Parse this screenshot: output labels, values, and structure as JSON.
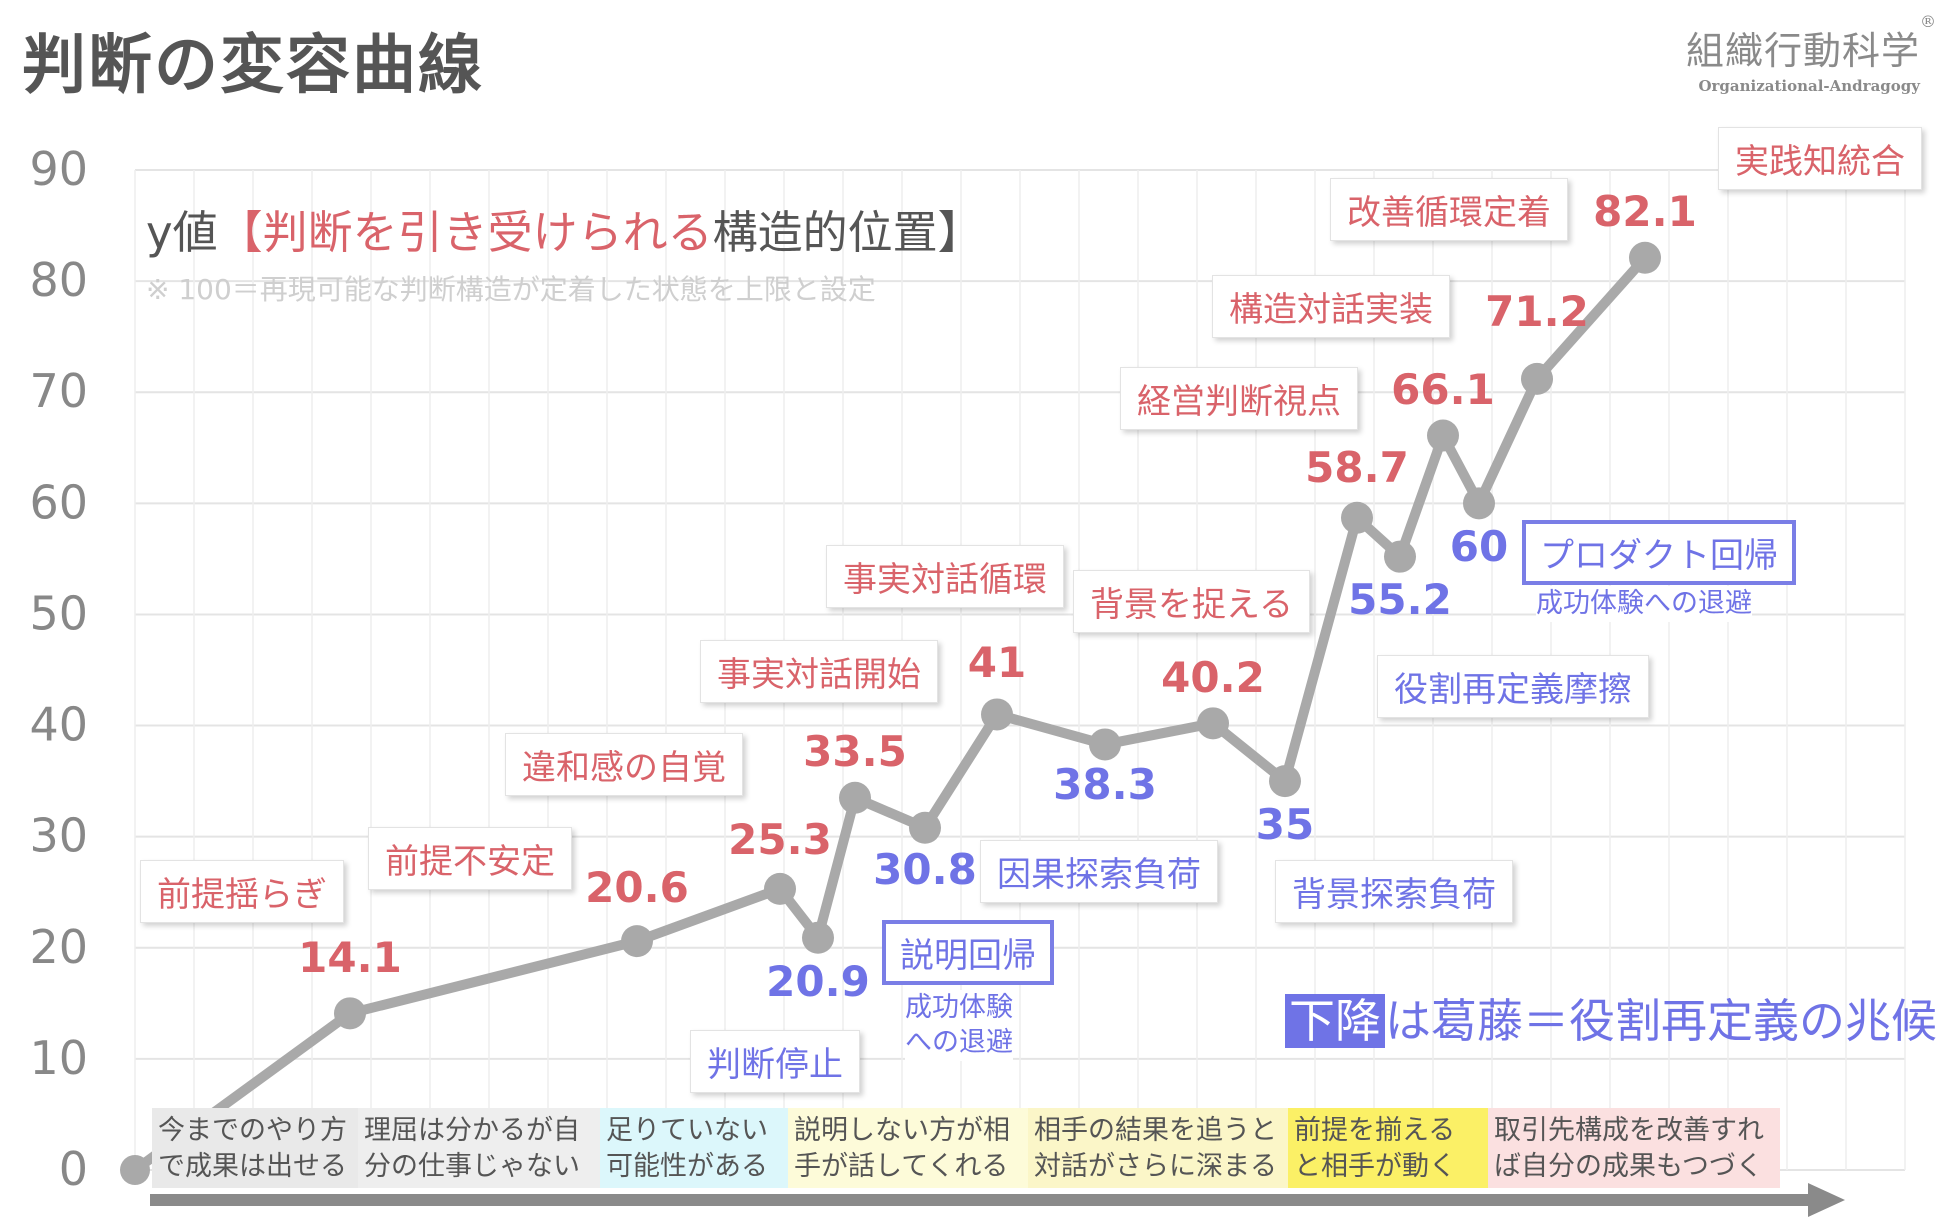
{
  "title": "判断の変容曲線",
  "brand": {
    "name": "組織行動科学",
    "sub": "Organizational-Andragogy",
    "reg": "®"
  },
  "header": {
    "prefix": "y値",
    "open": "【",
    "red": "判断を引き受けられる",
    "suffix": "構造的位置】",
    "note": "※ 100＝再現可能な判断構造が定着した状態を上限と設定"
  },
  "legend": {
    "highlight": "下降",
    "rest": "は葛藤＝役割再定義の兆候"
  },
  "colors": {
    "line": "#a9a9a9",
    "up": "#d9636a",
    "down": "#6f73e6",
    "grid": "#e4e4e4",
    "axis_text": "#888888"
  },
  "chart_data": {
    "type": "line",
    "ylim": [
      0,
      90
    ],
    "yticks": [
      "0",
      "10",
      "20",
      "30",
      "40",
      "50",
      "60",
      "70",
      "80",
      "90"
    ],
    "values": [
      0,
      14.1,
      20.6,
      25.3,
      20.9,
      33.5,
      30.8,
      41,
      38.3,
      40.2,
      35,
      58.7,
      55.2,
      66.1,
      60,
      71.2,
      82.1
    ],
    "value_labels": [
      "",
      "14.1",
      "20.6",
      "25.3",
      "20.9",
      "33.5",
      "30.8",
      "41",
      "38.3",
      "40.2",
      "35",
      "58.7",
      "55.2",
      "66.1",
      "60",
      "71.2",
      "82.1"
    ],
    "labels": [
      "",
      "前提揺らぎ",
      "前提不安定",
      "違和感の自覚",
      "判断停止",
      "事実対話開始",
      "説明回帰",
      "事実対話循環",
      "因果探索負荷",
      "背景を捉える",
      "背景探索負荷",
      "経営判断視点",
      "役割再定義摩擦",
      "構造対話実装",
      "プロダクト回帰",
      "改善循環定着",
      "実践知統合"
    ],
    "notes": {
      "sub_6_line1": "成功体験",
      "sub_6_line2": "への退避",
      "sub_14": "成功体験への退避"
    },
    "stages": [
      {
        "line1": "今までのやり方",
        "line2": "で成果は出せる",
        "color": "#e9e9e9"
      },
      {
        "line1": "理屈は分かるが自",
        "line2": "分の仕事じゃない",
        "color": "#eeeeee"
      },
      {
        "line1": "足りていない",
        "line2": "可能性がある",
        "color": "#dcf7fb"
      },
      {
        "line1": "説明しない方が相",
        "line2": "手が話してくれる",
        "color": "#fdfbd9"
      },
      {
        "line1": "相手の結果を追うと",
        "line2": "対話がさらに深まる",
        "color": "#fbf6c8"
      },
      {
        "line1": "前提を揃える",
        "line2": "と相手が動く",
        "color": "#fbf066"
      },
      {
        "line1": "取引先構成を改善すれ",
        "line2": "ば自分の成果もつづく",
        "color": "#fbe0e0"
      }
    ]
  }
}
